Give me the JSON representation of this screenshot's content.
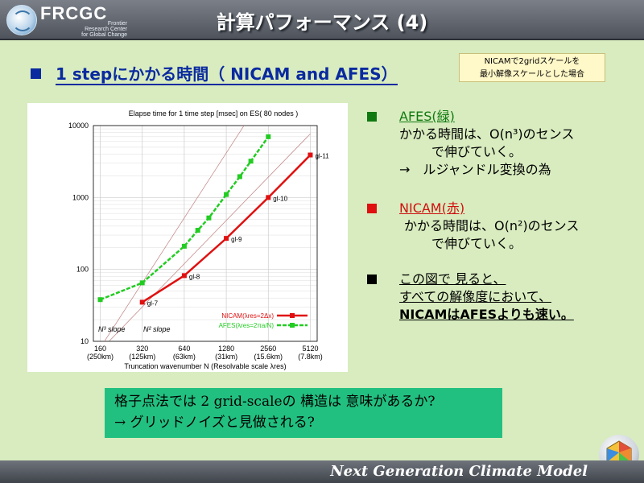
{
  "header": {
    "logo_name": "FRCGC",
    "logo_sub": [
      "Frontier",
      "Research Center",
      "for Global Change"
    ],
    "title": "計算パフォーマンス (4)"
  },
  "heading": "1 stepにかかる時間（ NICAM and AFES）",
  "note": [
    "NICAMで2gridスケールを",
    "最小解像スケールとした場合"
  ],
  "bullets": {
    "afes_label": "AFES(緑)",
    "afes_line1": "かかる時間は、O(n³)のセンス",
    "afes_line2": "で伸びていく。",
    "afes_line3": "→　ルジャンドル変換の為",
    "nicam_label": "NICAM(赤)",
    "nicam_line1": "かかる時間は、O(n²)のセンス",
    "nicam_line2": "で伸びていく。",
    "obs_line1": "この図で 見ると、",
    "obs_line2": "すべての解像度において、",
    "obs_line3": "NICAMはAFESよりも速い。"
  },
  "box": {
    "line1": "格子点法では 2 grid-scaleの 構造は 意味があるか?",
    "line2": "→ グリッドノイズと見做される?"
  },
  "footer": "Next Generation Climate Model",
  "colors": {
    "green": "#22cc22",
    "red": "#e01010",
    "nicam_text": "#d01010",
    "afes_text": "#107a10"
  },
  "chart_data": {
    "type": "line",
    "title": "Elapse time for 1 time step [msec] on ES( 80 nodes )",
    "xlabel": "Truncation wavenumber N (Resolvable scale λres)",
    "x_scale": "log",
    "y_scale": "log",
    "ylim": [
      10,
      10000
    ],
    "x_ticks": [
      {
        "value": 160,
        "label": "160",
        "sub": "(250km)"
      },
      {
        "value": 320,
        "label": "320",
        "sub": "(125km)"
      },
      {
        "value": 640,
        "label": "640",
        "sub": "(63km)"
      },
      {
        "value": 1280,
        "label": "1280",
        "sub": "(31km)"
      },
      {
        "value": 2560,
        "label": "2560",
        "sub": "(15.6km)"
      },
      {
        "value": 5120,
        "label": "5120",
        "sub": "(7.8km)"
      }
    ],
    "y_ticks": [
      10,
      100,
      1000,
      10000
    ],
    "series": [
      {
        "name": "NICAM(λres=2Δx)",
        "color": "#e01010",
        "x": [
          320,
          640,
          1280,
          2560,
          5120
        ],
        "y": [
          35,
          82,
          270,
          1000,
          3900
        ],
        "point_labels": [
          "gl-7",
          "gl-8",
          "gl-9",
          "gl-10",
          "gl-11"
        ]
      },
      {
        "name": "AFES(λres=2πa/N)",
        "color": "#22cc22",
        "x": [
          160,
          320,
          640,
          800,
          960,
          1280,
          1600,
          1920,
          2560
        ],
        "y": [
          38,
          65,
          210,
          350,
          520,
          1100,
          1950,
          3200,
          7000
        ],
        "point_labels": []
      }
    ],
    "slope_labels": [
      "N³ slope",
      "N² slope"
    ],
    "grid": true,
    "legend": "bottom-right"
  }
}
